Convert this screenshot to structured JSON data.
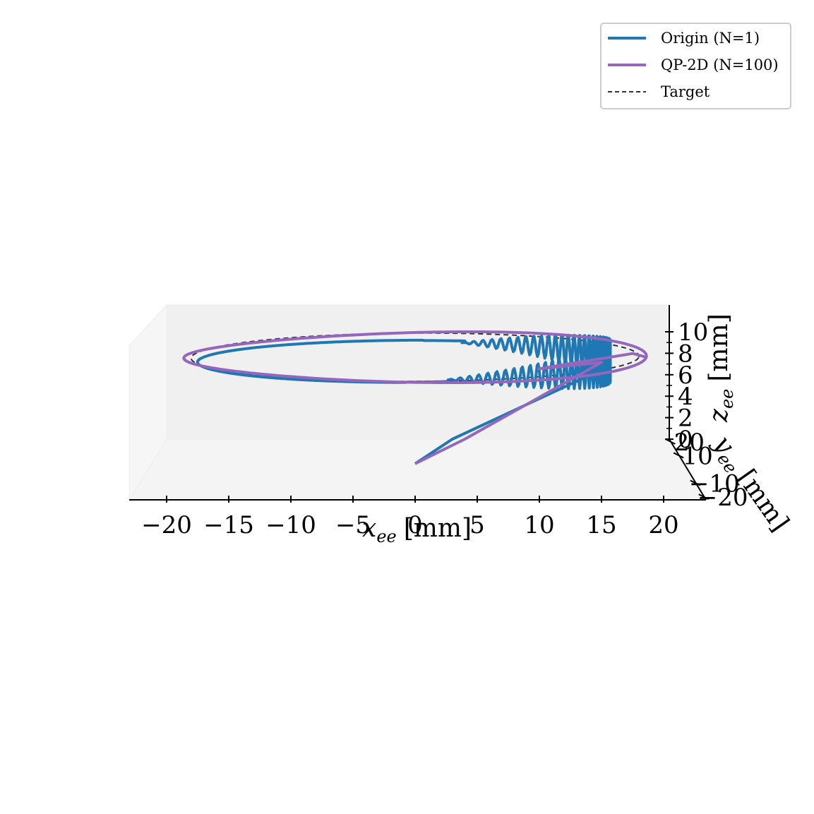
{
  "chart_data": {
    "type": "line",
    "projection": "3d",
    "title": "",
    "axes": {
      "x": {
        "label": "x_ee [mm]",
        "label_main": "x",
        "label_sub": "ee",
        "label_unit": "[mm]",
        "range": [
          -23,
          24
        ],
        "ticks": [
          -20,
          -15,
          -10,
          -5,
          0,
          5,
          10,
          15,
          20
        ],
        "tick_labels": [
          "−20",
          "−15",
          "−10",
          "−5",
          "0",
          "5",
          "10",
          "15",
          "20"
        ]
      },
      "y": {
        "label": "y_ee [mm]",
        "label_main": "y",
        "label_sub": "ee",
        "label_unit": "[mm]",
        "range": [
          -22,
          22
        ],
        "ticks": [
          -20,
          -10,
          10,
          20
        ],
        "tick_labels": [
          "−20",
          "−10",
          "10",
          "20"
        ]
      },
      "z": {
        "label": "z_ee [mm]",
        "label_main": "z",
        "label_sub": "ee",
        "label_unit": "[mm]",
        "range": [
          0,
          11
        ],
        "ticks": [
          0,
          2,
          4,
          6,
          8,
          10
        ],
        "tick_labels": [
          "0",
          "2",
          "4",
          "6",
          "8",
          "10"
        ]
      }
    },
    "grid": false,
    "legend": {
      "placement": "top-right"
    },
    "series": [
      {
        "name": "Origin (N=1)",
        "color": "#1f77b4",
        "style": "solid"
      },
      {
        "name": "QP-2D (N=100)",
        "color": "#9467bd",
        "style": "solid"
      },
      {
        "name": "Target",
        "color": "#333333",
        "style": "dashed"
      }
    ],
    "target": {
      "shape": "circle",
      "center": [
        0,
        0,
        8
      ],
      "radius": 18
    }
  }
}
